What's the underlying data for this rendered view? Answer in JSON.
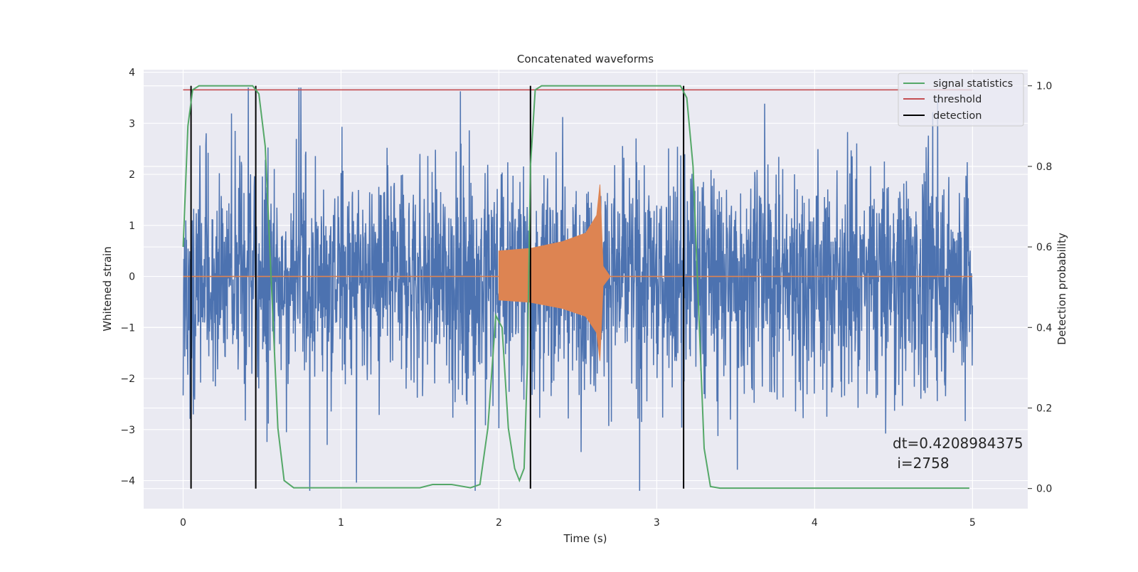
{
  "chart_data": {
    "type": "line",
    "title": "Concatenated waveforms",
    "xlabel": "Time (s)",
    "ylabel": "Whitened strain",
    "ylabel_right": "Detection probability",
    "xlim": [
      -0.25,
      5.35
    ],
    "ylim": [
      -4.55,
      4.05
    ],
    "ylim_right": [
      -0.05,
      1.04
    ],
    "x_ticks": [
      0,
      1,
      2,
      3,
      4,
      5
    ],
    "x_tick_labels": [
      "0",
      "1",
      "2",
      "3",
      "4",
      "5"
    ],
    "y_ticks": [
      -4,
      -3,
      -2,
      -1,
      0,
      1,
      2,
      3,
      4
    ],
    "y_tick_labels": [
      "−4",
      "−3",
      "−2",
      "−1",
      "0",
      "1",
      "2",
      "3",
      "4"
    ],
    "y_right_ticks": [
      0.0,
      0.2,
      0.4,
      0.6,
      0.8,
      1.0
    ],
    "y_right_tick_labels": [
      "0.0",
      "0.2",
      "0.4",
      "0.6",
      "0.8",
      "1.0"
    ],
    "grid": true,
    "legend_position": "top-right",
    "legend": [
      {
        "label": "signal statistics",
        "color": "#55a868"
      },
      {
        "label": "threshold",
        "color": "#c44e52"
      },
      {
        "label": "detection",
        "color": "#000000"
      }
    ],
    "annotation": {
      "line1": "dt=0.4208984375",
      "line2": " i=2758"
    },
    "threshold": 0.99,
    "detections": [
      0.05,
      0.46,
      2.2,
      3.17
    ],
    "noise": {
      "x_range": [
        0.0,
        5.0
      ],
      "typical_amplitude": 1.2,
      "peak_min": -4.2,
      "peak_max": 3.7,
      "color": "#4c72b0"
    },
    "injected_signal": {
      "color": "#dd8452",
      "points": [
        {
          "x": 2.0,
          "envelope": 0.5
        },
        {
          "x": 2.2,
          "envelope": 0.55
        },
        {
          "x": 2.4,
          "envelope": 0.68
        },
        {
          "x": 2.55,
          "envelope": 0.85
        },
        {
          "x": 2.62,
          "envelope": 1.2
        },
        {
          "x": 2.64,
          "envelope": 1.8
        },
        {
          "x": 2.66,
          "envelope": 0.2
        },
        {
          "x": 2.7,
          "envelope": 0.02
        }
      ]
    },
    "signal_statistics": [
      {
        "x": 0.0,
        "p": 0.6
      },
      {
        "x": 0.03,
        "p": 0.9
      },
      {
        "x": 0.06,
        "p": 0.99
      },
      {
        "x": 0.1,
        "p": 1.0
      },
      {
        "x": 0.44,
        "p": 1.0
      },
      {
        "x": 0.48,
        "p": 0.98
      },
      {
        "x": 0.52,
        "p": 0.85
      },
      {
        "x": 0.56,
        "p": 0.5
      },
      {
        "x": 0.6,
        "p": 0.15
      },
      {
        "x": 0.64,
        "p": 0.02
      },
      {
        "x": 0.7,
        "p": 0.002
      },
      {
        "x": 1.5,
        "p": 0.002
      },
      {
        "x": 1.58,
        "p": 0.01
      },
      {
        "x": 1.7,
        "p": 0.01
      },
      {
        "x": 1.82,
        "p": 0.002
      },
      {
        "x": 1.88,
        "p": 0.01
      },
      {
        "x": 1.93,
        "p": 0.15
      },
      {
        "x": 1.98,
        "p": 0.43
      },
      {
        "x": 2.02,
        "p": 0.4
      },
      {
        "x": 2.06,
        "p": 0.15
      },
      {
        "x": 2.1,
        "p": 0.05
      },
      {
        "x": 2.13,
        "p": 0.02
      },
      {
        "x": 2.16,
        "p": 0.05
      },
      {
        "x": 2.18,
        "p": 0.3
      },
      {
        "x": 2.2,
        "p": 0.8
      },
      {
        "x": 2.23,
        "p": 0.99
      },
      {
        "x": 2.27,
        "p": 1.0
      },
      {
        "x": 3.15,
        "p": 1.0
      },
      {
        "x": 3.19,
        "p": 0.97
      },
      {
        "x": 3.23,
        "p": 0.8
      },
      {
        "x": 3.27,
        "p": 0.4
      },
      {
        "x": 3.3,
        "p": 0.1
      },
      {
        "x": 3.34,
        "p": 0.005
      },
      {
        "x": 3.4,
        "p": 0.001
      },
      {
        "x": 4.98,
        "p": 0.001
      }
    ]
  }
}
